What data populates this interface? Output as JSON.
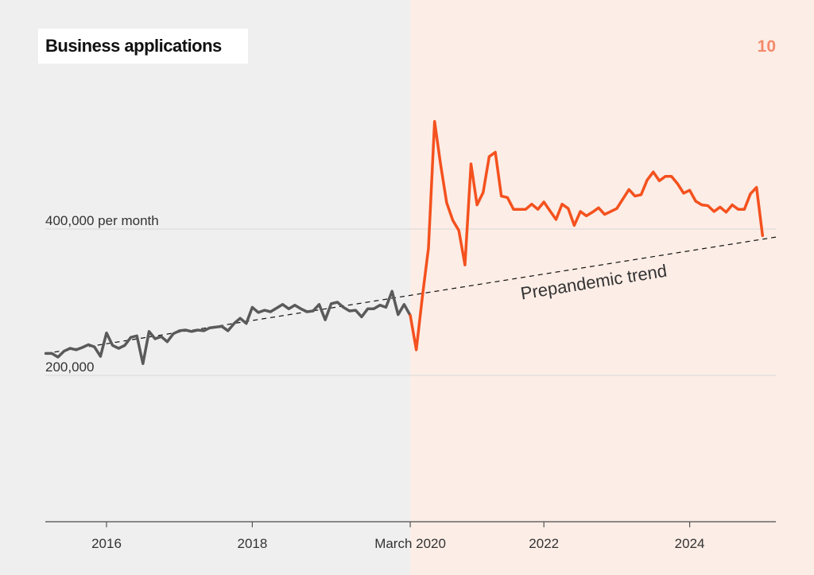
{
  "page_number": "10",
  "colors": {
    "pre_background": "#efefef",
    "post_background": "#fcede6",
    "pre_line": "#5a5a5a",
    "post_line": "#f4511e",
    "trend_line": "#111111",
    "page_number": "#f4896b",
    "gridline": "#d9d9d9"
  },
  "chart_data": {
    "type": "line",
    "title": "Business applications",
    "xlabel": "",
    "ylabel": "",
    "x_ticks": [
      {
        "label": "2016",
        "date": "2016-01"
      },
      {
        "label": "2018",
        "date": "2018-01"
      },
      {
        "label": "March 2020",
        "date": "2020-03"
      },
      {
        "label": "2022",
        "date": "2022-01"
      },
      {
        "label": "2024",
        "date": "2024-01"
      }
    ],
    "y_ticks": [
      {
        "label": "200,000",
        "value": 200000
      },
      {
        "label": "400,000 per month",
        "value": 400000
      }
    ],
    "ylim": [
      0,
      713000
    ],
    "xlim": [
      "2015-03",
      "2025-02"
    ],
    "grid": "horizontal",
    "shaded_regions": [
      {
        "from": "2015-03",
        "to": "2020-03",
        "color": "#efefef"
      },
      {
        "from": "2020-03",
        "to": "2025-02",
        "color": "#fcede6"
      }
    ],
    "series": [
      {
        "frequency": "monthly",
        "start": "2015-03",
        "color": "#5a5a5a",
        "values": [
          230000,
          230000,
          225000,
          233000,
          237000,
          235000,
          238000,
          242000,
          239000,
          226000,
          258000,
          241000,
          237000,
          241000,
          252000,
          254000,
          216000,
          260000,
          250000,
          253000,
          246000,
          257000,
          261000,
          262000,
          260000,
          262000,
          261000,
          265000,
          266000,
          267000,
          261000,
          271000,
          278000,
          271000,
          293000,
          286000,
          289000,
          287000,
          292000,
          297000,
          291000,
          296000,
          291000,
          287000,
          288000,
          297000,
          276000,
          298000,
          300000,
          293000,
          288000,
          289000,
          280000,
          291000,
          291000,
          296000,
          293000,
          315000,
          283000,
          297000,
          282000
        ]
      },
      {
        "frequency": "monthly",
        "start": "2020-03",
        "color": "#f4511e",
        "values": [
          282000,
          235000,
          308000,
          374000,
          547000,
          488000,
          436000,
          412000,
          398000,
          351000,
          489000,
          433000,
          450000,
          499000,
          505000,
          445000,
          443000,
          427000,
          427000,
          427000,
          434000,
          427000,
          437000,
          425000,
          413000,
          434000,
          428000,
          405000,
          424000,
          418000,
          423000,
          429000,
          420000,
          424000,
          428000,
          441000,
          454000,
          445000,
          447000,
          467000,
          478000,
          466000,
          472000,
          472000,
          462000,
          449000,
          453000,
          438000,
          433000,
          432000,
          424000,
          430000,
          423000,
          433000,
          427000,
          427000,
          448000,
          457000,
          391000
        ]
      }
    ],
    "trend": {
      "label": "Prepandemic trend",
      "style": "dashed",
      "start": {
        "date": "2015-03",
        "value": 230000
      },
      "end": {
        "date": "2025-03",
        "value": 389000
      }
    }
  }
}
